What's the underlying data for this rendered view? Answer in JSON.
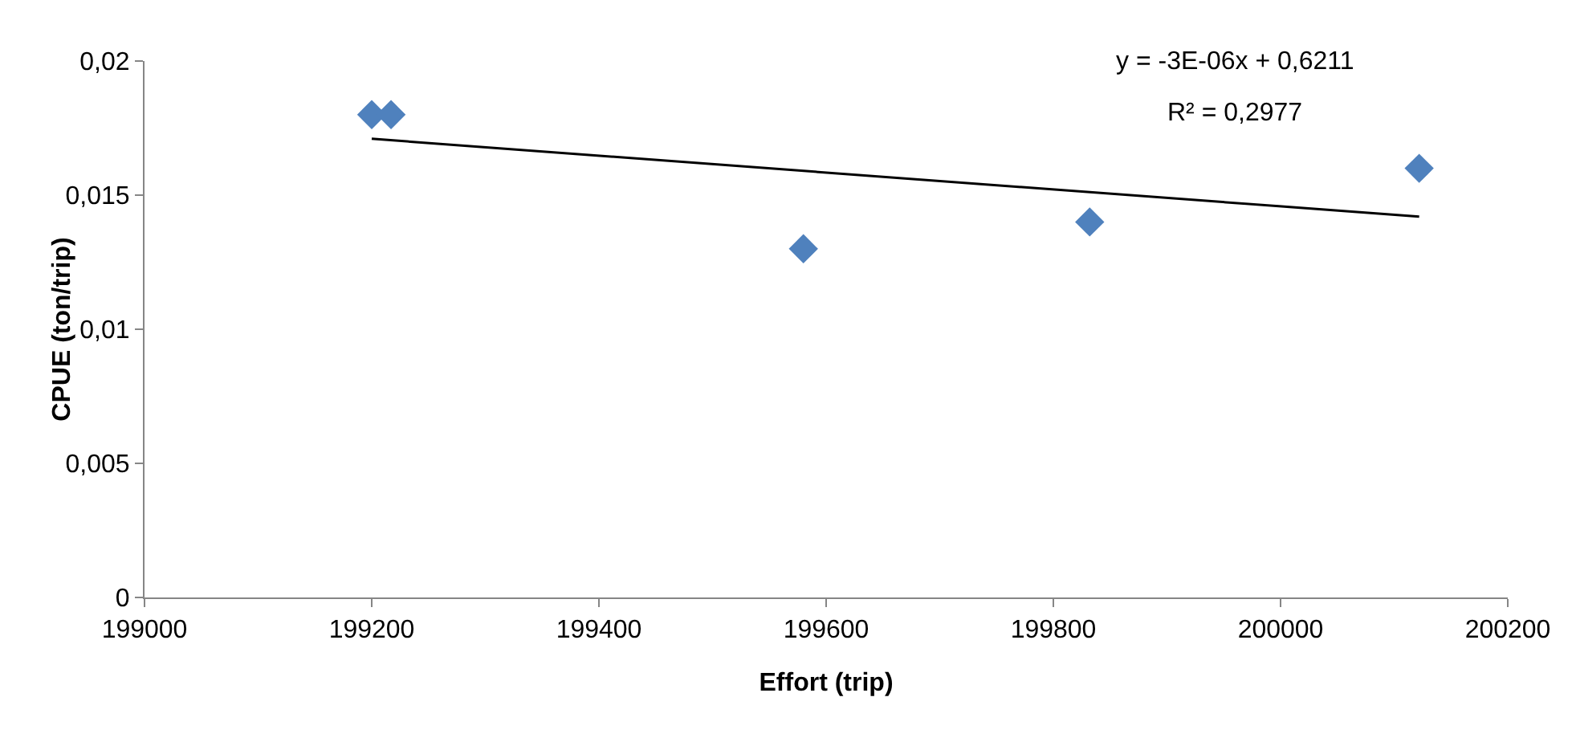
{
  "chart_data": {
    "type": "scatter",
    "xlabel": "Effort (trip)",
    "ylabel": "CPUE (ton/trip)",
    "x": [
      199200,
      199217,
      199580,
      199832,
      200122
    ],
    "series": [
      {
        "color": "#4f81bd",
        "values": [
          0.018,
          0.018,
          0.013,
          0.014,
          0.016
        ],
        "marker": "diamond"
      },
      {
        "type": "line",
        "color": "#000000",
        "x": [
          199200,
          200122
        ],
        "values": [
          0.0171,
          0.0142
        ],
        "marker": "none"
      }
    ],
    "xlim": [
      199000,
      200200
    ],
    "xticks": [
      199000,
      199200,
      199400,
      199600,
      199800,
      200000,
      200200
    ],
    "ylim": [
      0,
      0.02
    ],
    "yticks": [
      {
        "value": 0,
        "label": "0"
      },
      {
        "value": 0.005,
        "label": "0,005"
      },
      {
        "value": 0.01,
        "label": "0,01"
      },
      {
        "value": 0.015,
        "label": "0,015"
      },
      {
        "value": 0.02,
        "label": "0,02"
      }
    ],
    "annotations": [
      "y = -3E-06x + 0,6211",
      "R² = 0,2977"
    ],
    "grid": false
  }
}
